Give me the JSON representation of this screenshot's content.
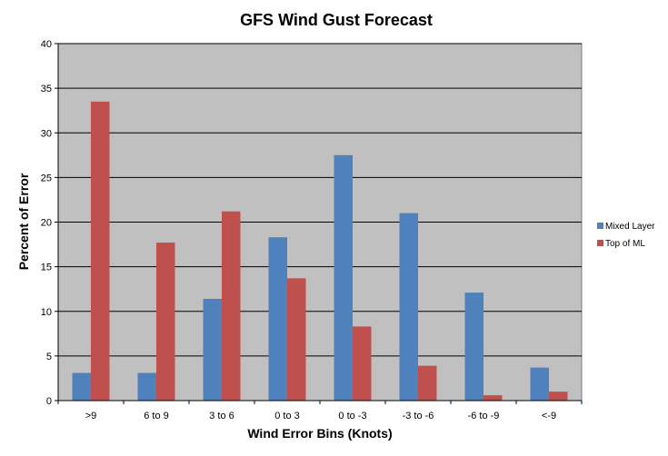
{
  "chart_data": {
    "type": "bar",
    "title": "GFS Wind Gust Forecast",
    "xlabel": "Wind Error Bins (Knots)",
    "ylabel": "Percent of Error",
    "categories": [
      ">9",
      "6 to 9",
      "3 to 6",
      "0 to 3",
      "0 to -3",
      "-3 to -6",
      "-6 to -9",
      "<-9"
    ],
    "series": [
      {
        "name": "Mixed Layer",
        "color": "#4f81bd",
        "values": [
          3.1,
          3.1,
          11.4,
          18.3,
          27.5,
          21.0,
          12.1,
          3.7
        ]
      },
      {
        "name": "Top of ML",
        "color": "#c0504d",
        "values": [
          33.5,
          17.7,
          21.2,
          13.7,
          8.3,
          3.9,
          0.6,
          1.0
        ]
      }
    ],
    "ylim": [
      0,
      40
    ],
    "yticks": [
      0,
      5,
      10,
      15,
      20,
      25,
      30,
      35,
      40
    ],
    "grid": true,
    "legend": "right",
    "plot_background": "#c0c0c0"
  }
}
